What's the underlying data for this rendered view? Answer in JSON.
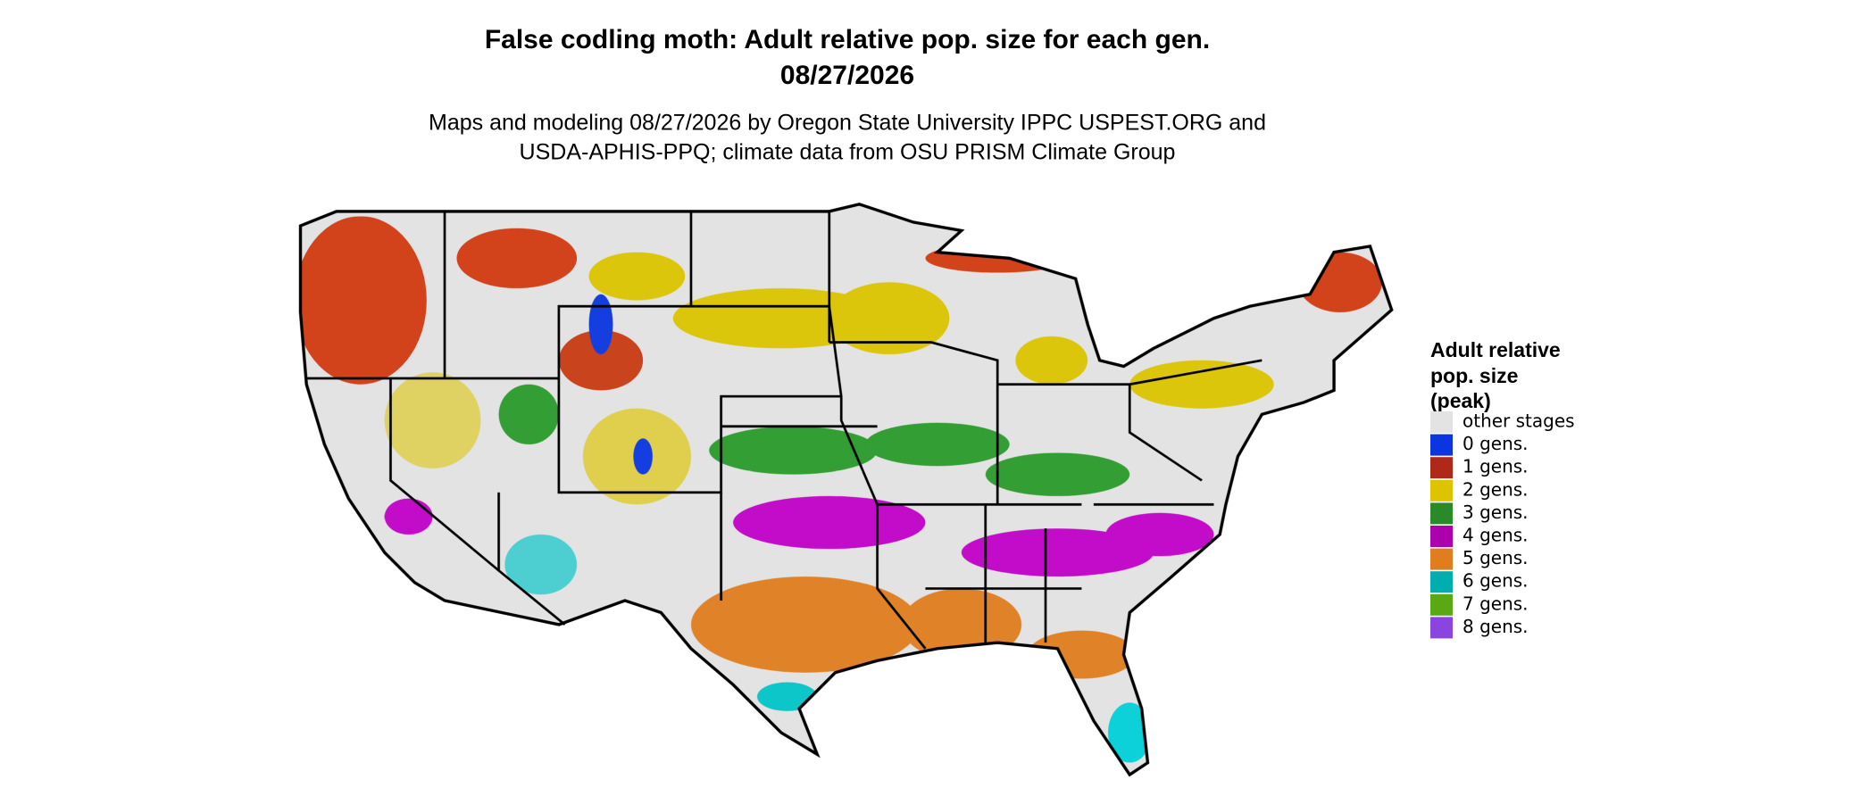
{
  "header": {
    "title_lines": [
      "False codling moth: Adult relative pop. size for each gen.",
      "08/27/2026"
    ],
    "subtitle_lines": [
      "Maps and modeling 08/27/2026 by Oregon State University IPPC USPEST.ORG and",
      "USDA-APHIS-PPQ; climate data from OSU PRISM Climate Group"
    ]
  },
  "legend": {
    "title_lines": [
      "Adult relative",
      "pop. size",
      "(peak)"
    ],
    "items": [
      {
        "label": "other stages",
        "color": "#e3e3e3"
      },
      {
        "label": "0 gens.",
        "color": "#0a35e0"
      },
      {
        "label": "1 gens.",
        "color": "#b02818"
      },
      {
        "label": "2 gens.",
        "color": "#dcc400"
      },
      {
        "label": "3 gens.",
        "color": "#2a8a2a"
      },
      {
        "label": "4 gens.",
        "color": "#ad00ad"
      },
      {
        "label": "5 gens.",
        "color": "#e07d1e"
      },
      {
        "label": "6 gens.",
        "color": "#00aeb0"
      },
      {
        "label": "7 gens.",
        "color": "#5aa814"
      },
      {
        "label": "8 gens.",
        "color": "#8a45e0"
      }
    ]
  }
}
